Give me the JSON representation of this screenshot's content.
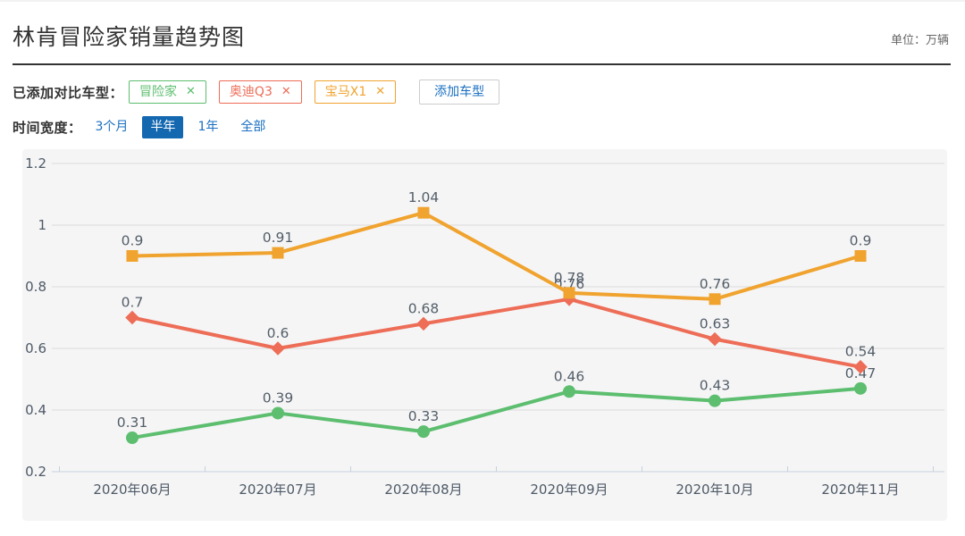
{
  "header": {
    "title": "林肯冒险家销量趋势图",
    "unit_label": "单位：万辆"
  },
  "compare_bar": {
    "label": "已添加对比车型：",
    "close_icon": "✕",
    "tags": [
      {
        "label": "冒险家",
        "color": "#5cbe6e"
      },
      {
        "label": "奥迪Q3",
        "color": "#ed6d57"
      },
      {
        "label": "宝马X1",
        "color": "#f0a32e"
      }
    ],
    "add_button": "添加车型"
  },
  "time_bar": {
    "label": "时间宽度：",
    "options": [
      {
        "label": "3个月",
        "selected": false
      },
      {
        "label": "半年",
        "selected": true
      },
      {
        "label": "1年",
        "selected": false
      },
      {
        "label": "全部",
        "selected": false
      }
    ]
  },
  "chart_data": {
    "type": "line",
    "title": "林肯冒险家销量趋势图",
    "xlabel": "",
    "ylabel": "",
    "unit": "万辆",
    "categories": [
      "2020年06月",
      "2020年07月",
      "2020年08月",
      "2020年09月",
      "2020年10月",
      "2020年11月"
    ],
    "series": [
      {
        "name": "冒险家",
        "color": "#5cbe6e",
        "marker": "circle",
        "values": [
          0.31,
          0.39,
          0.33,
          0.46,
          0.43,
          0.47
        ]
      },
      {
        "name": "奥迪Q3",
        "color": "#ed6d57",
        "marker": "diamond",
        "values": [
          0.7,
          0.6,
          0.68,
          0.76,
          0.63,
          0.54
        ]
      },
      {
        "name": "宝马X1",
        "color": "#f0a32e",
        "marker": "square",
        "values": [
          0.9,
          0.91,
          1.04,
          0.78,
          0.76,
          0.9
        ]
      }
    ],
    "ylim": [
      0.2,
      1.2
    ],
    "yticks": [
      0.2,
      0.4,
      0.6,
      0.8,
      1,
      1.2
    ],
    "grid": true,
    "legend": "none"
  },
  "colors": {
    "accent_blue": "#1a6fc0",
    "selected_bg": "#1368b0",
    "grid": "#dcdcdc",
    "axis": "#c7d1de",
    "axis_label": "#4e5a66",
    "value_label": "#535e68",
    "chart_bg": "#f5f5f6",
    "divider": "#333333"
  }
}
